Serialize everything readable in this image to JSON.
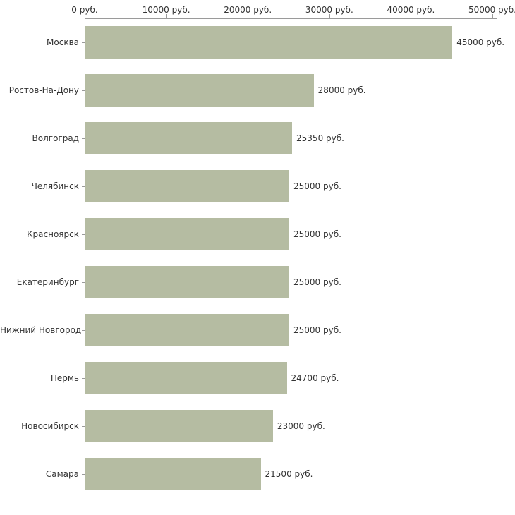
{
  "chart_data": {
    "type": "bar",
    "orientation": "horizontal",
    "title": "",
    "xlabel": "",
    "ylabel": "",
    "categories": [
      "Москва",
      "Ростов-На-Дону",
      "Волгоград",
      "Челябинск",
      "Красноярск",
      "Екатеринбург",
      "Нижний Новгород",
      "Пермь",
      "Новосибирск",
      "Самара"
    ],
    "values": [
      45000,
      28000,
      25350,
      25000,
      25000,
      25000,
      25000,
      24700,
      23000,
      21500
    ],
    "value_labels": [
      "45000 руб.",
      "28000 руб.",
      "25350 руб.",
      "25000 руб.",
      "25000 руб.",
      "25000 руб.",
      "25000 руб.",
      "24700 руб.",
      "23000 руб.",
      "21500 руб."
    ],
    "x_ticks": [
      0,
      10000,
      20000,
      30000,
      40000,
      50000
    ],
    "x_tick_labels": [
      "0 руб.",
      "10000 руб.",
      "20000 руб.",
      "30000 руб.",
      "40000 руб.",
      "50000 руб."
    ],
    "xlim": [
      0,
      50000
    ],
    "grid": false,
    "legend": "none",
    "bar_color": "#b5bca2",
    "axis_color": "#9a9a9a",
    "text_color": "#333333"
  }
}
